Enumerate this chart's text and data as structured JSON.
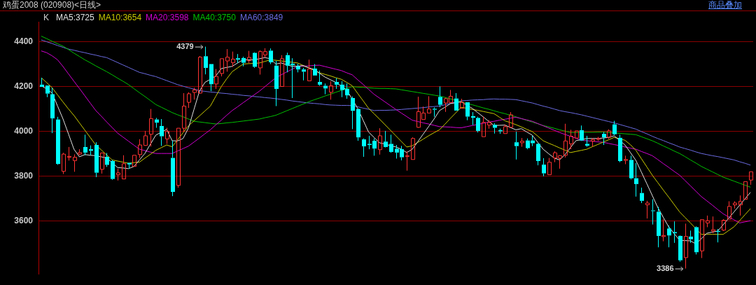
{
  "chart_data": {
    "type": "candlestick",
    "title": "鸡蛋2008 (020908)<日线>",
    "legend_title": "K",
    "legend": "top left",
    "grid": "y",
    "tick_labels": "y",
    "ylim": [
      3360,
      4490
    ],
    "yticks": [
      3600,
      3800,
      4000,
      4200,
      4400
    ],
    "annotations": [
      "商品叠加",
      "4379",
      "3386"
    ],
    "categories": [
      null,
      null,
      null,
      null,
      null,
      null,
      null,
      null,
      null,
      null,
      null,
      null,
      null,
      null,
      null,
      null,
      null,
      null,
      null,
      null,
      null,
      null,
      null,
      null,
      null,
      null,
      null,
      null,
      null,
      null,
      null,
      null,
      null,
      null,
      null,
      null,
      null,
      null,
      null,
      null,
      null,
      null,
      null,
      null,
      null,
      null,
      null,
      null,
      null,
      null,
      null,
      null,
      null,
      null,
      null,
      null,
      null,
      null,
      null,
      null,
      null,
      null,
      null,
      null,
      null,
      null,
      null,
      null,
      null,
      null,
      null,
      null,
      null,
      null,
      null,
      null,
      null,
      null,
      null,
      null,
      null,
      null,
      null,
      null,
      null,
      null,
      null,
      null,
      null,
      null,
      null,
      null,
      null,
      null,
      null,
      null,
      null,
      null,
      null,
      null,
      null,
      null,
      null,
      null,
      null,
      null,
      null,
      null,
      null,
      null,
      null,
      null,
      null,
      null,
      null,
      null,
      null,
      null,
      null,
      null,
      null,
      null,
      null,
      null,
      null,
      null,
      null,
      null,
      null,
      null,
      null
    ],
    "ohlc": [
      [
        4209,
        4240,
        4199,
        4199
      ],
      [
        4205,
        4205,
        4153,
        4169
      ],
      [
        4166,
        4195,
        3992,
        4058
      ],
      [
        4053,
        4065,
        3850,
        3854
      ],
      [
        3821,
        3904,
        3809,
        3898
      ],
      [
        3884,
        3930,
        3869,
        3888
      ],
      [
        3869,
        3897,
        3819,
        3884
      ],
      [
        3898,
        3920,
        3893,
        3905
      ],
      [
        3930,
        3985,
        3893,
        3905
      ],
      [
        3920,
        3937,
        3893,
        3913
      ],
      [
        3939,
        3951,
        3795,
        3815
      ],
      [
        3830,
        3905,
        3811,
        3903
      ],
      [
        3886,
        3903,
        3841,
        3850
      ],
      [
        3867,
        3872,
        3783,
        3787
      ],
      [
        3806,
        3833,
        3780,
        3814
      ],
      [
        3787,
        3893,
        3787,
        3855
      ],
      [
        3859,
        3859,
        3833,
        3852
      ],
      [
        3843,
        3893,
        3843,
        3893
      ],
      [
        3896,
        3965,
        3881,
        3939
      ],
      [
        3937,
        4002,
        3935,
        3980
      ],
      [
        3987,
        4100,
        3932,
        4057
      ],
      [
        4053,
        4060,
        4016,
        4039
      ],
      [
        4024,
        4055,
        3935,
        3978
      ],
      [
        3966,
        4016,
        3944,
        4000
      ],
      [
        3881,
        3958,
        3710,
        3729
      ],
      [
        3758,
        4014,
        3748,
        4014
      ],
      [
        4014,
        4171,
        3997,
        4113
      ],
      [
        4130,
        4175,
        4105,
        4168
      ],
      [
        4174,
        4195,
        4142,
        4185
      ],
      [
        4171,
        4337,
        4169,
        4332
      ],
      [
        4336,
        4379,
        4255,
        4284
      ],
      [
        4301,
        4301,
        4180,
        4211
      ],
      [
        4212,
        4279,
        4190,
        4246
      ],
      [
        4259,
        4325,
        4246,
        4325
      ],
      [
        4315,
        4368,
        4267,
        4332
      ],
      [
        4307,
        4357,
        4288,
        4323
      ],
      [
        4327,
        4346,
        4306,
        4321
      ],
      [
        4328,
        4334,
        4291,
        4307
      ],
      [
        4317,
        4360,
        4306,
        4331
      ],
      [
        4351,
        4354,
        4284,
        4289
      ],
      [
        4284,
        4363,
        4254,
        4357
      ],
      [
        4342,
        4372,
        4330,
        4357
      ],
      [
        4361,
        4371,
        4301,
        4309
      ],
      [
        4294,
        4315,
        4113,
        4190
      ],
      [
        4201,
        4341,
        4201,
        4325
      ],
      [
        4341,
        4352,
        4264,
        4294
      ],
      [
        4303,
        4327,
        4149,
        4296
      ],
      [
        4291,
        4302,
        4264,
        4277
      ],
      [
        4277,
        4284,
        4228,
        4267
      ],
      [
        4226,
        4321,
        4226,
        4279
      ],
      [
        4281,
        4301,
        4250,
        4250
      ],
      [
        4221,
        4272,
        4204,
        4209
      ],
      [
        4204,
        4214,
        4166,
        4192
      ],
      [
        4175,
        4224,
        4142,
        4204
      ],
      [
        4221,
        4238,
        4190,
        4209
      ],
      [
        4209,
        4224,
        4153,
        4185
      ],
      [
        4190,
        4214,
        4146,
        4161
      ],
      [
        4149,
        4156,
        4010,
        4092
      ],
      [
        4100,
        4100,
        3958,
        3973
      ],
      [
        3964,
        3968,
        3886,
        3933
      ],
      [
        3944,
        3980,
        3920,
        3939
      ],
      [
        3958,
        3968,
        3891,
        3923
      ],
      [
        3918,
        4014,
        3896,
        3980
      ],
      [
        3954,
        4002,
        3928,
        3930
      ],
      [
        3944,
        3985,
        3904,
        3908
      ],
      [
        3922,
        3939,
        3878,
        3905
      ],
      [
        3920,
        3935,
        3870,
        3884
      ],
      [
        3888,
        3910,
        3824,
        3891
      ],
      [
        3874,
        3973,
        3874,
        3968
      ],
      [
        4018,
        4155,
        4016,
        4088
      ],
      [
        4053,
        4111,
        4053,
        4082
      ],
      [
        4082,
        4157,
        4082,
        4100
      ],
      [
        4101,
        4107,
        4065,
        4097
      ],
      [
        4154,
        4201,
        4108,
        4119
      ],
      [
        4127,
        4151,
        4087,
        4146
      ],
      [
        4129,
        4185,
        4129,
        4157
      ],
      [
        4147,
        4171,
        4093,
        4093
      ],
      [
        4103,
        4146,
        4103,
        4130
      ],
      [
        4130,
        4130,
        4050,
        4066
      ],
      [
        4068,
        4086,
        4028,
        4061
      ],
      [
        4060,
        4065,
        3995,
        4002
      ],
      [
        3976,
        4066,
        3976,
        4040
      ],
      [
        4028,
        4050,
        4012,
        4040
      ],
      [
        4029,
        4036,
        3990,
        4016
      ],
      [
        4005,
        4012,
        3989,
        4000
      ],
      [
        3990,
        4031,
        3990,
        4021
      ],
      [
        4018,
        4086,
        4018,
        4074
      ],
      [
        3951,
        3999,
        3874,
        3934
      ],
      [
        3949,
        3970,
        3931,
        3956
      ],
      [
        3959,
        3968,
        3920,
        3925
      ],
      [
        3959,
        3980,
        3934,
        3947
      ],
      [
        3944,
        3947,
        3848,
        3867
      ],
      [
        3851,
        3880,
        3799,
        3812
      ],
      [
        3806,
        3881,
        3806,
        3862
      ],
      [
        3881,
        3911,
        3862,
        3904
      ],
      [
        3880,
        3893,
        3833,
        3891
      ],
      [
        3893,
        4034,
        3883,
        3957
      ],
      [
        3944,
        4007,
        3920,
        3978
      ],
      [
        3970,
        4002,
        3970,
        4002
      ],
      [
        4005,
        4026,
        3957,
        3959
      ],
      [
        3944,
        3980,
        3931,
        3936
      ],
      [
        3956,
        3970,
        3931,
        3963
      ],
      [
        3964,
        3975,
        3957,
        3968
      ],
      [
        3989,
        3997,
        3939,
        3973
      ],
      [
        3973,
        4009,
        3966,
        4002
      ],
      [
        4031,
        4047,
        3983,
        3987
      ],
      [
        3971,
        3985,
        3862,
        3867
      ],
      [
        3870,
        3891,
        3853,
        3874
      ],
      [
        3872,
        3891,
        3785,
        3790
      ],
      [
        3790,
        3858,
        3708,
        3764
      ],
      [
        3724,
        3748,
        3679,
        3689
      ],
      [
        3671,
        3689,
        3610,
        3679
      ],
      [
        3646,
        3696,
        3583,
        3643
      ],
      [
        3640,
        3662,
        3481,
        3532
      ],
      [
        3529,
        3607,
        3508,
        3534
      ],
      [
        3565,
        3578,
        3481,
        3534
      ],
      [
        3549,
        3597,
        3501,
        3544
      ],
      [
        3532,
        3534,
        3417,
        3423
      ],
      [
        3435,
        3587,
        3386,
        3530
      ],
      [
        3529,
        3556,
        3501,
        3517
      ],
      [
        3571,
        3575,
        3449,
        3459
      ],
      [
        3465,
        3605,
        3433,
        3605
      ],
      [
        3590,
        3623,
        3571,
        3600
      ],
      [
        3554,
        3619,
        3544,
        3560
      ],
      [
        3554,
        3563,
        3503,
        3550
      ],
      [
        3558,
        3607,
        3554,
        3602
      ],
      [
        3607,
        3687,
        3607,
        3664
      ],
      [
        3671,
        3687,
        3655,
        3679
      ],
      [
        3671,
        3713,
        3623,
        3687
      ],
      [
        3696,
        3775,
        3696,
        3775
      ],
      [
        3782,
        3819,
        3761,
        3819
      ]
    ],
    "colors": [
      "#00ffff",
      "#00ffff",
      "#00ffff",
      "#00ffff",
      "#ff3232",
      "#ff3232",
      "#ff3232",
      "#ff3232",
      "#00ffff",
      "#00ffff",
      "#00ffff",
      "#ff3232",
      "#00ffff",
      "#00ffff",
      "#ff3232",
      "#ff3232",
      "#00ffff",
      "#ff3232",
      "#ff3232",
      "#ff3232",
      "#ff3232",
      "#00ffff",
      "#00ffff",
      "#ff3232",
      "#00ffff",
      "#ff3232",
      "#ff3232",
      "#ff3232",
      "#ff3232",
      "#ff3232",
      "#00ffff",
      "#00ffff",
      "#ff3232",
      "#ff3232",
      "#ff3232",
      "#ff3232",
      "#00ffff",
      "#00ffff",
      "#ff3232",
      "#00ffff",
      "#ff3232",
      "#ff3232",
      "#00ffff",
      "#00ffff",
      "#ff3232",
      "#00ffff",
      "#00ffff",
      "#00ffff",
      "#00ffff",
      "#ff3232",
      "#00ffff",
      "#00ffff",
      "#00ffff",
      "#ff3232",
      "#00ffff",
      "#00ffff",
      "#00ffff",
      "#00ffff",
      "#00ffff",
      "#00ffff",
      "#00ffff",
      "#00ffff",
      "#ff3232",
      "#00ffff",
      "#00ffff",
      "#00ffff",
      "#00ffff",
      "#ff3232",
      "#ff3232",
      "#ff3232",
      "#ff3232",
      "#ff3232",
      "#00ffff",
      "#00ffff",
      "#ff3232",
      "#ff3232",
      "#00ffff",
      "#ff3232",
      "#00ffff",
      "#00ffff",
      "#00ffff",
      "#ff3232",
      "#ff3232",
      "#00ffff",
      "#00ffff",
      "#ff3232",
      "#ff3232",
      "#00ffff",
      "#ff3232",
      "#00ffff",
      "#00ffff",
      "#00ffff",
      "#00ffff",
      "#ff3232",
      "#ff3232",
      "#ff3232",
      "#ff3232",
      "#ff3232",
      "#ff3232",
      "#00ffff",
      "#00ffff",
      "#ff3232",
      "#ff3232",
      "#00ffff",
      "#ff3232",
      "#00ffff",
      "#00ffff",
      "#ff3232",
      "#00ffff",
      "#00ffff",
      "#00ffff",
      "#ff3232",
      "#00ffff",
      "#00ffff",
      "#ff3232",
      "#00ffff",
      "#00ffff",
      "#00ffff",
      "#ff3232",
      "#00ffff",
      "#00ffff",
      "#ff3232",
      "#ff3232",
      "#ff3232",
      "#00ffff",
      "#ff3232",
      "#ff3232",
      "#ff3232",
      "#ff3232",
      "#ff3232",
      "#ff3232"
    ],
    "series": [
      {
        "name": "MA5:3725",
        "type": "line",
        "color": "#e0e0e0",
        "values": [
          4204,
          4190,
          4171,
          4113,
          4055,
          3988,
          3920,
          3886,
          3896,
          3893,
          3891,
          3886,
          3881,
          3860,
          3838,
          3836,
          3833,
          3843,
          3872,
          3901,
          3942,
          3983,
          3996,
          4009,
          3958,
          3957,
          3968,
          4016,
          4098,
          4180,
          4219,
          4233,
          4248,
          4281,
          4286,
          4291,
          4306,
          4320,
          4320,
          4320,
          4325,
          4330,
          4325,
          4301,
          4306,
          4298,
          4291,
          4292,
          4294,
          4285,
          4277,
          4260,
          4243,
          4231,
          4219,
          4202,
          4185,
          4144,
          4103,
          4050,
          3997,
          3973,
          3949,
          3943,
          3936,
          3930,
          3920,
          3905,
          3920,
          3953,
          3987,
          4021,
          4055,
          4093,
          4108,
          4124,
          4128,
          4132,
          4117,
          4103,
          4084,
          4065,
          4045,
          4026,
          4027,
          4028,
          4017,
          4007,
          4012,
          3997,
          3983,
          3951,
          3920,
          3900,
          3881,
          3872,
          3896,
          3927,
          3958,
          3963,
          3968,
          3968,
          3968,
          3970,
          3973,
          3980,
          3960,
          3939,
          3905,
          3870,
          3818,
          3766,
          3713,
          3660,
          3616,
          3573,
          3543,
          3513,
          3511,
          3510,
          3496,
          3520,
          3544,
          3549,
          3554,
          3582,
          3611,
          3640,
          3669,
          3698,
          3727
        ]
      },
      {
        "name": "MA10:3654",
        "type": "line",
        "color": "#c8c800",
        "values": [
          4240,
          4218,
          4195,
          4163,
          4131,
          4100,
          4071,
          4038,
          4005,
          3972,
          3939,
          3917,
          3894,
          3872,
          3867,
          3862,
          3857,
          3860,
          3862,
          3880,
          3897,
          3915,
          3927,
          3939,
          3931,
          3962,
          3994,
          4025,
          4047,
          4069,
          4091,
          4113,
          4157,
          4200,
          4235,
          4267,
          4284,
          4301,
          4303,
          4304,
          4306,
          4313,
          4320,
          4318,
          4315,
          4312,
          4309,
          4306,
          4295,
          4284,
          4273,
          4262,
          4255,
          4248,
          4240,
          4233,
          4219,
          4204,
          4170,
          4137,
          4103,
          4079,
          4055,
          4030,
          4005,
          3980,
          3955,
          3930,
          3935,
          3950,
          3965,
          3980,
          3994,
          4007,
          4032,
          4058,
          4083,
          4108,
          4103,
          4098,
          4094,
          4089,
          4084,
          4079,
          4063,
          4047,
          4039,
          4030,
          4020,
          4009,
          3999,
          3979,
          3958,
          3947,
          3937,
          3926,
          3916,
          3905,
          3910,
          3915,
          3920,
          3931,
          3941,
          3952,
          3962,
          3973,
          3967,
          3960,
          3940,
          3915,
          3878,
          3841,
          3804,
          3771,
          3738,
          3706,
          3673,
          3640,
          3615,
          3590,
          3564,
          3539,
          3539,
          3539,
          3539,
          3539,
          3556,
          3573,
          3600,
          3627,
          3654
        ]
      },
      {
        "name": "MA20:3598",
        "type": "line",
        "color": "#d000d0",
        "values": [
          4360,
          4352,
          4338,
          4320,
          4290,
          4257,
          4224,
          4192,
          4159,
          4126,
          4093,
          4068,
          4042,
          4017,
          3992,
          3974,
          3956,
          3938,
          3920,
          3914,
          3907,
          3901,
          3901,
          3901,
          3901,
          3912,
          3923,
          3934,
          3952,
          3970,
          3989,
          4007,
          4029,
          4050,
          4072,
          4093,
          4110,
          4128,
          4145,
          4163,
          4180,
          4200,
          4220,
          4240,
          4253,
          4266,
          4278,
          4291,
          4292,
          4293,
          4295,
          4296,
          4290,
          4284,
          4278,
          4272,
          4262,
          4253,
          4231,
          4210,
          4188,
          4166,
          4149,
          4132,
          4115,
          4098,
          4082,
          4066,
          4050,
          4044,
          4038,
          4033,
          4027,
          4021,
          4020,
          4019,
          4017,
          4016,
          4021,
          4026,
          4031,
          4036,
          4041,
          4045,
          4050,
          4054,
          4059,
          4063,
          4057,
          4051,
          4045,
          4035,
          4025,
          4015,
          4005,
          3995,
          3986,
          3978,
          3969,
          3960,
          3958,
          3956,
          3953,
          3951,
          3946,
          3941,
          3936,
          3930,
          3925,
          3920,
          3910,
          3901,
          3891,
          3874,
          3856,
          3839,
          3821,
          3804,
          3780,
          3756,
          3732,
          3708,
          3689,
          3670,
          3650,
          3631,
          3617,
          3604,
          3590,
          3595,
          3600
        ]
      },
      {
        "name": "MA40:3750",
        "type": "line",
        "color": "#00c000",
        "values": [
          4426,
          4415,
          4403,
          4392,
          4381,
          4366,
          4350,
          4335,
          4320,
          4307,
          4293,
          4280,
          4267,
          4253,
          4238,
          4224,
          4209,
          4191,
          4173,
          4156,
          4138,
          4120,
          4108,
          4096,
          4084,
          4074,
          4065,
          4055,
          4045,
          4042,
          4039,
          4036,
          4033,
          4035,
          4038,
          4040,
          4043,
          4046,
          4049,
          4052,
          4055,
          4061,
          4066,
          4072,
          4082,
          4092,
          4102,
          4112,
          4122,
          4132,
          4141,
          4149,
          4158,
          4166,
          4175,
          4183,
          4192,
          4200,
          4198,
          4197,
          4195,
          4193,
          4192,
          4192,
          4191,
          4190,
          4186,
          4182,
          4178,
          4174,
          4170,
          4166,
          4162,
          4158,
          4152,
          4145,
          4139,
          4132,
          4125,
          4119,
          4112,
          4105,
          4099,
          4092,
          4085,
          4079,
          4072,
          4065,
          4057,
          4049,
          4042,
          4034,
          4026,
          4020,
          4014,
          4007,
          4001,
          3995,
          3995,
          3996,
          3996,
          3996,
          3997,
          3997,
          3995,
          3993,
          3991,
          3989,
          3987,
          3985,
          3976,
          3967,
          3958,
          3947,
          3935,
          3924,
          3912,
          3901,
          3887,
          3872,
          3858,
          3843,
          3831,
          3819,
          3807,
          3795,
          3786,
          3777,
          3768,
          3759,
          3750
        ]
      },
      {
        "name": "MA60:3849",
        "type": "line",
        "color": "#6a6ae0",
        "values": [
          4409,
          4401,
          4393,
          4384,
          4376,
          4368,
          4363,
          4357,
          4352,
          4346,
          4341,
          4335,
          4330,
          4319,
          4308,
          4297,
          4286,
          4275,
          4264,
          4258,
          4251,
          4245,
          4236,
          4227,
          4218,
          4209,
          4202,
          4195,
          4189,
          4182,
          4179,
          4176,
          4174,
          4171,
          4169,
          4166,
          4164,
          4161,
          4159,
          4156,
          4154,
          4151,
          4149,
          4146,
          4143,
          4140,
          4136,
          4133,
          4130,
          4127,
          4125,
          4123,
          4120,
          4118,
          4117,
          4116,
          4116,
          4115,
          4110,
          4104,
          4099,
          4093,
          4094,
          4094,
          4095,
          4096,
          4098,
          4100,
          4102,
          4104,
          4106,
          4109,
          4111,
          4113,
          4119,
          4125,
          4131,
          4137,
          4138,
          4140,
          4141,
          4142,
          4144,
          4145,
          4144,
          4144,
          4143,
          4142,
          4137,
          4132,
          4127,
          4120,
          4113,
          4107,
          4100,
          4093,
          4088,
          4084,
          4079,
          4074,
          4068,
          4062,
          4056,
          4050,
          4044,
          4038,
          4031,
          4024,
          4017,
          4010,
          3999,
          3989,
          3978,
          3968,
          3959,
          3949,
          3940,
          3930,
          3923,
          3916,
          3908,
          3901,
          3896,
          3891,
          3887,
          3882,
          3877,
          3872,
          3864,
          3857,
          3849
        ]
      }
    ]
  }
}
